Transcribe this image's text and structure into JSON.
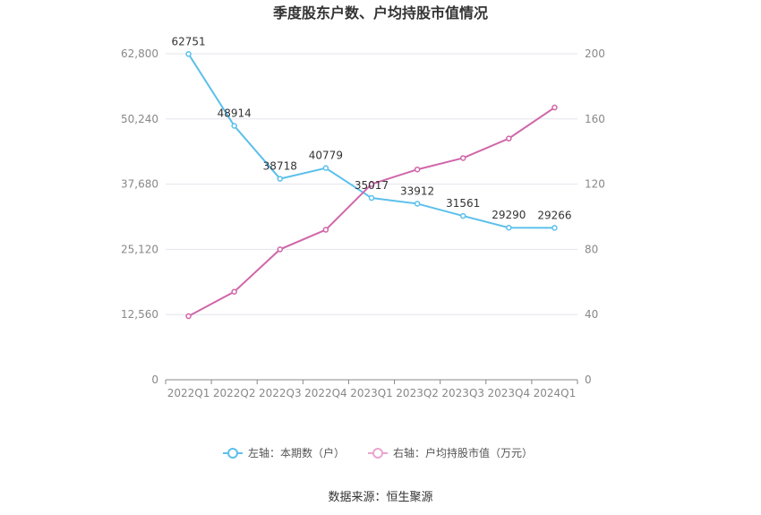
{
  "chart_data": {
    "type": "line",
    "title": "季度股东户数、户均持股市值情况",
    "categories": [
      "2022Q1",
      "2022Q2",
      "2022Q3",
      "2022Q4",
      "2023Q1",
      "2023Q2",
      "2023Q3",
      "2023Q4",
      "2024Q1"
    ],
    "left_axis": {
      "ticks": [
        "0",
        "12,560",
        "25,120",
        "37,680",
        "50,240",
        "62,800"
      ],
      "min": 0,
      "max": 62800
    },
    "right_axis": {
      "ticks": [
        "0",
        "40",
        "80",
        "120",
        "160",
        "200"
      ],
      "min": 0,
      "max": 200
    },
    "series": [
      {
        "name": "左轴：本期数（户）",
        "axis": "left",
        "color": "#5bc0eb",
        "values": [
          62751,
          48914,
          38718,
          40779,
          35017,
          33912,
          31561,
          29290,
          29266
        ],
        "labels": [
          "62751",
          "48914",
          "38718",
          "40779",
          "35017",
          "33912",
          "31561",
          "29290",
          "29266"
        ]
      },
      {
        "name": "右轴：户均持股市值（万元）",
        "axis": "right",
        "color": "#d066a8",
        "legend_color": "#e8a6cf",
        "values": [
          39,
          54,
          80,
          92,
          120,
          129,
          136,
          148,
          167
        ]
      }
    ],
    "grid": true,
    "legend_position": "bottom"
  },
  "source": "数据来源：恒生聚源"
}
